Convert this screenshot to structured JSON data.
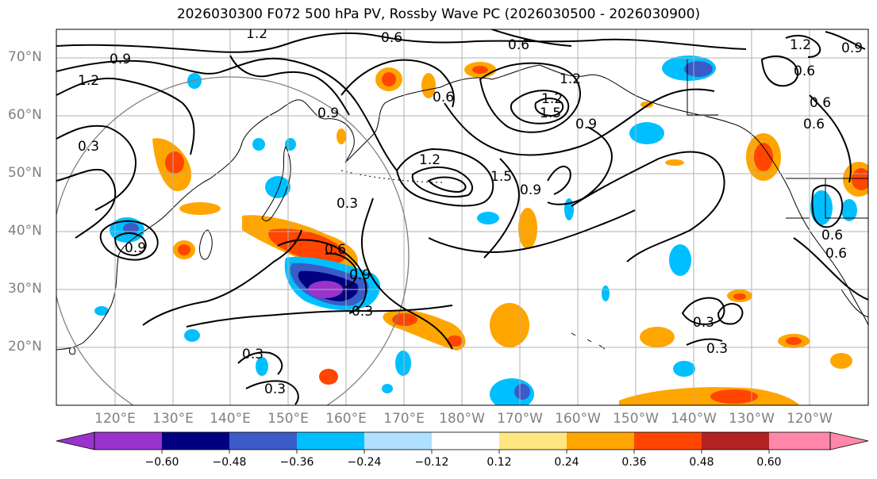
{
  "title": "2026030300 F072 500 hPa PV, Rossby Wave PC (2026030500 - 2026030900)",
  "lat_labels": [
    "70°N",
    "60°N",
    "50°N",
    "40°N",
    "30°N",
    "20°N"
  ],
  "lon_labels": [
    "120°E",
    "130°E",
    "140°E",
    "150°E",
    "160°E",
    "170°E",
    "180°W",
    "170°W",
    "160°W",
    "150°W",
    "140°W",
    "130°W",
    "120°W"
  ],
  "colorbar": {
    "ticks": [
      "−0.60",
      "−0.48",
      "−0.36",
      "−0.24",
      "−0.12",
      "0.12",
      "0.24",
      "0.36",
      "0.48",
      "0.60"
    ],
    "colors": [
      "#9933cc",
      "#000080",
      "#3a5bc8",
      "#00bfff",
      "#b0e0ff",
      "#ffffff",
      "#ffe680",
      "#ffa500",
      "#ff4500",
      "#b22222",
      "#ff88aa"
    ]
  },
  "contour_labels": {
    "c1": "1.2",
    "c2": "0.6",
    "c3": "0.6",
    "c4": "1.2",
    "c5": "0.9",
    "c6": "0.9",
    "c7": "1.2",
    "c8": "0.6",
    "c9": "0.3",
    "c10": "1.2",
    "c11": "0.6",
    "c12": "0.9",
    "c13": "1.2",
    "c14": "1.5",
    "c15": "0.6",
    "c16": "0.6",
    "c17": "0.3",
    "c18": "0.9",
    "c19": "1.2",
    "c20": "1.5",
    "c21": "0.9",
    "c22": "0.6",
    "c23": "0.9",
    "c24": "0.3",
    "c25": "0.3",
    "c26": "0.3",
    "c27": "0.3",
    "c28": "0.3",
    "c29": "0.6",
    "c30": "0.6",
    "c31": "0.9"
  }
}
